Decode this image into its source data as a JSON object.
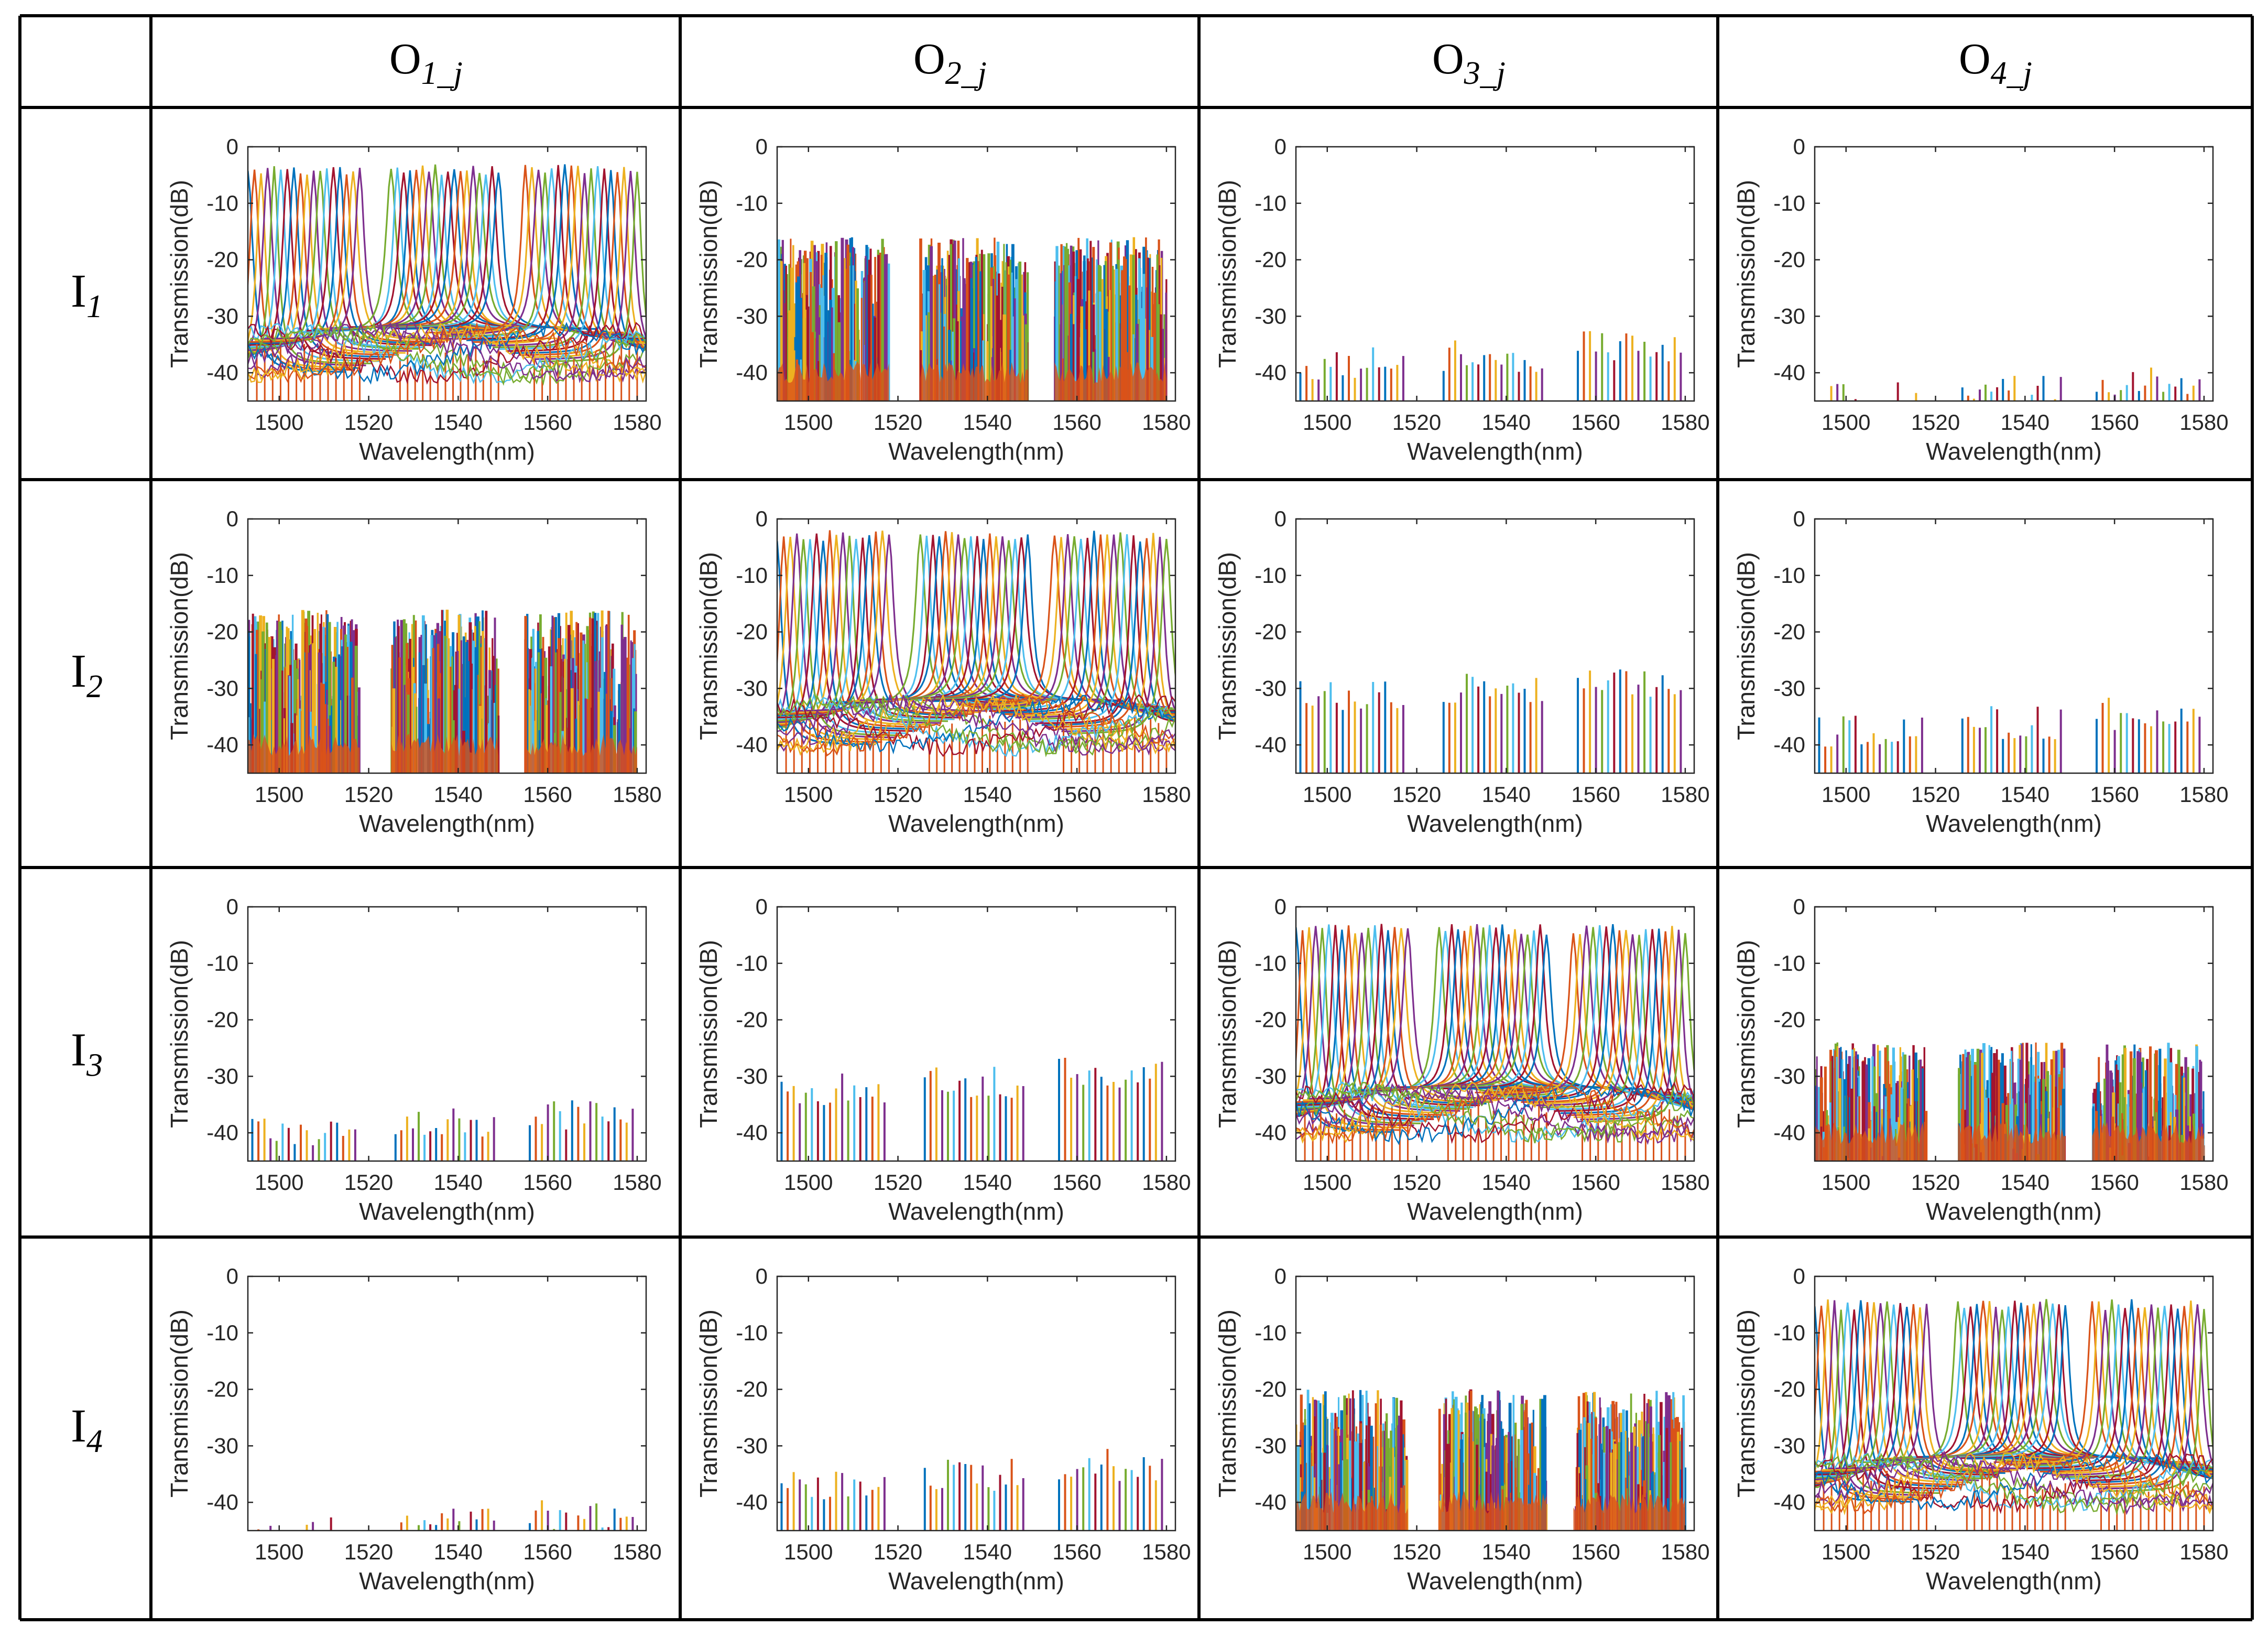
{
  "table": {
    "column_headers": [
      {
        "base": "O",
        "sub": "1_j"
      },
      {
        "base": "O",
        "sub": "2_j"
      },
      {
        "base": "O",
        "sub": "3_j"
      },
      {
        "base": "O",
        "sub": "4_j"
      }
    ],
    "row_headers": [
      {
        "base": "I",
        "sub": "1"
      },
      {
        "base": "I",
        "sub": "2"
      },
      {
        "base": "I",
        "sub": "3"
      },
      {
        "base": "I",
        "sub": "4"
      }
    ]
  },
  "colors": [
    "#0072BD",
    "#D95319",
    "#EDB120",
    "#7E2F8E",
    "#77AC30",
    "#4DBEEE",
    "#A2142F"
  ],
  "chart_data": {
    "type": "line",
    "description_kind": "grid of transmission spectra",
    "xlabel": "Wavelength(nm)",
    "ylabel": "Transmission(dB)",
    "xlim": [
      1493,
      1582
    ],
    "ylim": [
      -45,
      0
    ],
    "xticks": [
      1500,
      1520,
      1540,
      1560,
      1580
    ],
    "yticks": [
      0,
      -10,
      -20,
      -30,
      -40
    ],
    "band_edges_nm": [
      [
        1493,
        1518
      ],
      [
        1525,
        1549
      ],
      [
        1555,
        1580
      ]
    ],
    "panels": [
      {
        "row": 1,
        "col": 1,
        "style": "through",
        "peak_db": -3,
        "floor_db": -40
      },
      {
        "row": 1,
        "col": 2,
        "style": "dense",
        "peak_db": -16,
        "floor_db": -45
      },
      {
        "row": 1,
        "col": 3,
        "style": "sparse",
        "peak_db": -34,
        "floor_db": -45
      },
      {
        "row": 1,
        "col": 4,
        "style": "sparse",
        "peak_db": -40,
        "floor_db": -45
      },
      {
        "row": 2,
        "col": 1,
        "style": "dense",
        "peak_db": -16,
        "floor_db": -45
      },
      {
        "row": 2,
        "col": 2,
        "style": "through",
        "peak_db": -2,
        "floor_db": -40
      },
      {
        "row": 2,
        "col": 3,
        "style": "sparse",
        "peak_db": -27,
        "floor_db": -45
      },
      {
        "row": 2,
        "col": 4,
        "style": "sparse",
        "peak_db": -33,
        "floor_db": -45
      },
      {
        "row": 3,
        "col": 1,
        "style": "sparse",
        "peak_db": -35,
        "floor_db": -45
      },
      {
        "row": 3,
        "col": 2,
        "style": "sparse",
        "peak_db": -28,
        "floor_db": -45
      },
      {
        "row": 3,
        "col": 3,
        "style": "through",
        "peak_db": -3,
        "floor_db": -40
      },
      {
        "row": 3,
        "col": 4,
        "style": "dense",
        "peak_db": -24,
        "floor_db": -45
      },
      {
        "row": 4,
        "col": 1,
        "style": "sparse",
        "peak_db": -41,
        "floor_db": -45
      },
      {
        "row": 4,
        "col": 2,
        "style": "sparse",
        "peak_db": -32,
        "floor_db": -45
      },
      {
        "row": 4,
        "col": 3,
        "style": "dense",
        "peak_db": -20,
        "floor_db": -45
      },
      {
        "row": 4,
        "col": 4,
        "style": "through",
        "peak_db": -4,
        "floor_db": -40
      }
    ]
  }
}
